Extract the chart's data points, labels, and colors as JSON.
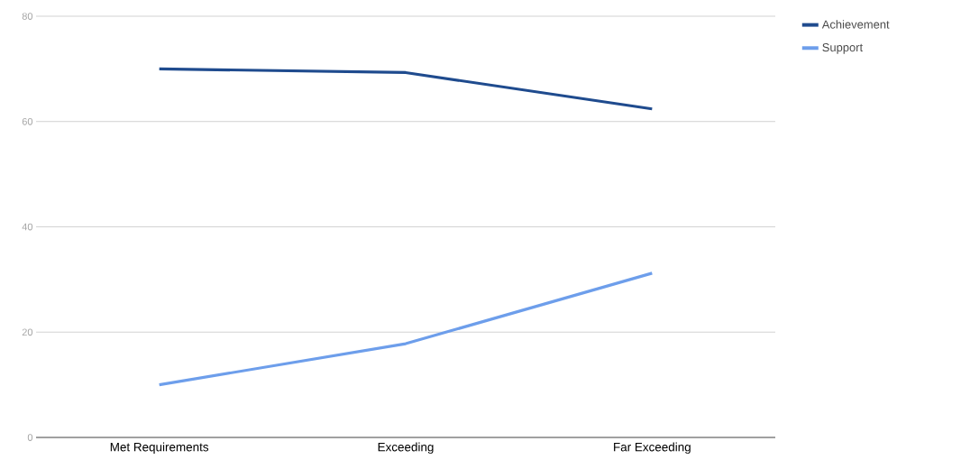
{
  "chart_data": {
    "type": "line",
    "categories": [
      "Met Requirements",
      "Exceeding",
      "Far Exceeding"
    ],
    "series": [
      {
        "name": "Achievement",
        "color": "#1f4b8e",
        "values": [
          70,
          69.3,
          62.4
        ]
      },
      {
        "name": "Support",
        "color": "#6d9eeb",
        "values": [
          10,
          17.8,
          31.2
        ]
      }
    ],
    "ylim": [
      0,
      80
    ],
    "yticks": [
      0,
      20,
      40,
      60,
      80
    ],
    "grid": "y",
    "legend": "right",
    "marker": "none",
    "line_style": "solid"
  }
}
